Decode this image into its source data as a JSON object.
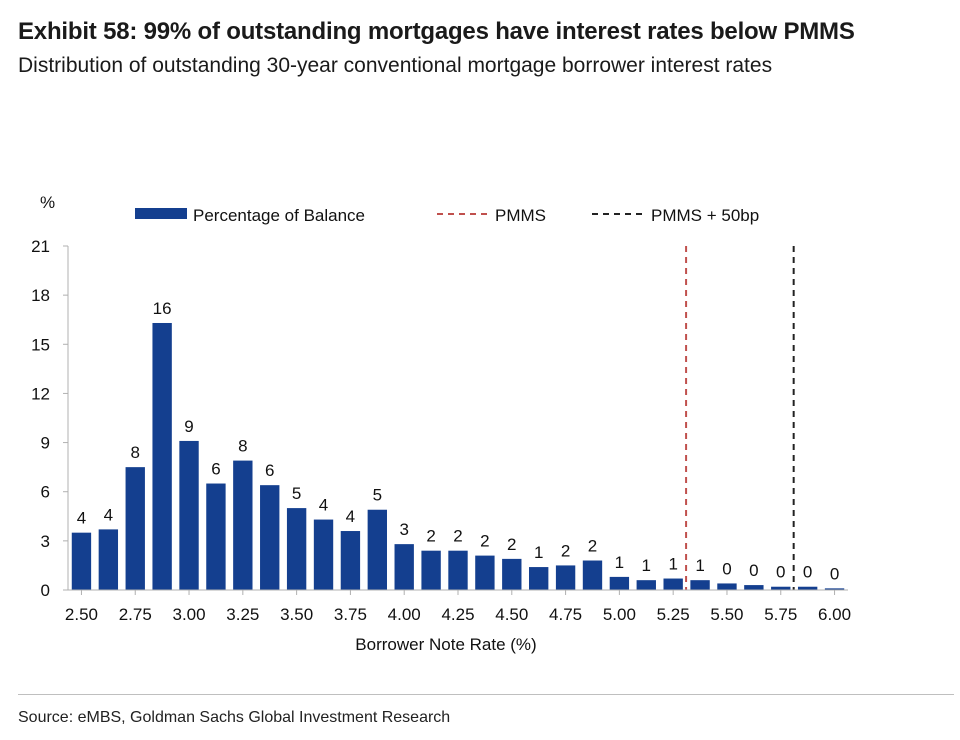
{
  "title": "Exhibit 58: 99% of outstanding mortgages have interest rates below PMMS",
  "subtitle": "Distribution of outstanding 30-year conventional mortgage borrower interest rates",
  "source": "Source: eMBS, Goldman Sachs Global Investment Research",
  "colors": {
    "bar": "#143f8f",
    "pmms": "#c0504d",
    "pmms50": "#222222",
    "axis": "#b0b0b0"
  },
  "chart_data": {
    "type": "bar",
    "x": [
      2.5,
      2.625,
      2.75,
      2.875,
      3.0,
      3.125,
      3.25,
      3.375,
      3.5,
      3.625,
      3.75,
      3.875,
      4.0,
      4.125,
      4.25,
      4.375,
      4.5,
      4.625,
      4.75,
      4.875,
      5.0,
      5.125,
      5.25,
      5.375,
      5.5,
      5.625,
      5.75,
      5.875,
      6.0
    ],
    "series": [
      {
        "name": "Percentage of Balance",
        "values": [
          3.5,
          3.7,
          7.5,
          16.3,
          9.1,
          6.5,
          7.9,
          6.4,
          5.0,
          4.3,
          3.6,
          4.9,
          2.8,
          2.4,
          2.4,
          2.1,
          1.9,
          1.4,
          1.5,
          1.8,
          0.8,
          0.6,
          0.7,
          0.6,
          0.4,
          0.3,
          0.2,
          0.2,
          0.1
        ],
        "labels": [
          "4",
          "4",
          "8",
          "16",
          "9",
          "6",
          "8",
          "6",
          "5",
          "4",
          "4",
          "5",
          "3",
          "2",
          "2",
          "2",
          "2",
          "1",
          "2",
          "2",
          "1",
          "1",
          "1",
          "1",
          "0",
          "0",
          "0",
          "0",
          "0"
        ]
      }
    ],
    "reference_lines": [
      {
        "name": "PMMS",
        "x": 5.31,
        "style": "dashed"
      },
      {
        "name": "PMMS + 50bp",
        "x": 5.81,
        "style": "dashed"
      }
    ],
    "xlabel": "Borrower Note Rate (%)",
    "ylabel": "%",
    "ylim": [
      0,
      21
    ],
    "yticks": [
      "0",
      "3",
      "6",
      "9",
      "12",
      "15",
      "18",
      "21"
    ],
    "xticks": [
      "2.50",
      "2.75",
      "3.00",
      "3.25",
      "3.50",
      "3.75",
      "4.00",
      "4.25",
      "4.50",
      "4.75",
      "5.00",
      "5.25",
      "5.50",
      "5.75",
      "6.00"
    ],
    "legend": [
      "Percentage of Balance",
      "PMMS",
      "PMMS + 50bp"
    ],
    "legend_position": "top",
    "grid": false
  }
}
